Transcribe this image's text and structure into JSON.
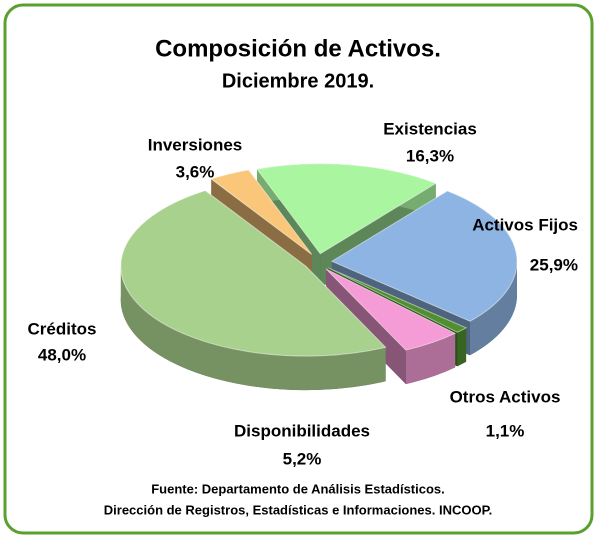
{
  "chart_data": {
    "type": "pie",
    "title": "Composición de Activos.",
    "subtitle": "Diciembre 2019.",
    "categories": [
      "Existencias",
      "Activos Fijos",
      "Otros Activos",
      "Disponibilidades",
      "Créditos",
      "Inversiones"
    ],
    "values": [
      16.3,
      25.9,
      1.1,
      5.2,
      48.0,
      3.6
    ],
    "value_labels": [
      "16,3%",
      "25,9%",
      "1,1%",
      "5,2%",
      "48,0%",
      "3,6%"
    ],
    "colors": [
      "#a9f5a0",
      "#8db4e2",
      "#4f8f2f",
      "#f59bd6",
      "#a9d18e",
      "#fac77a"
    ],
    "footnotes": [
      "Fuente: Departamento de Análisis Estadísticos.",
      "Dirección de Registros, Estadísticas e Informaciones. INCOOP."
    ]
  }
}
